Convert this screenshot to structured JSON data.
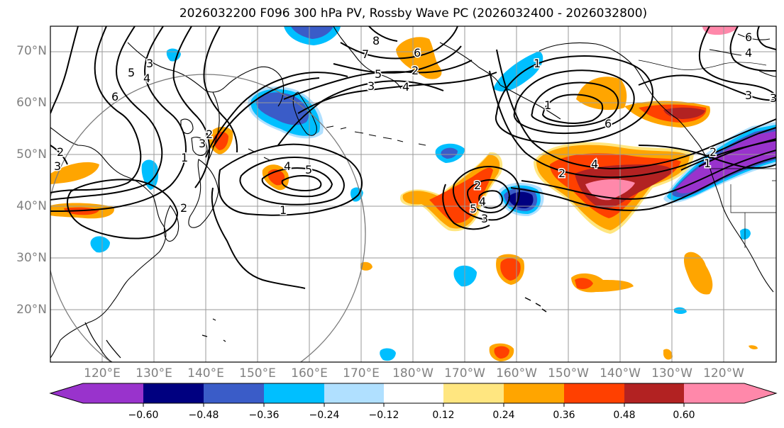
{
  "title": "2026032200 F096 300 hPa PV, Rossby Wave PC (2026032400 - 2026032800)",
  "latitude_labels": [
    "70°N",
    "60°N",
    "50°N",
    "40°N",
    "30°N",
    "20°N"
  ],
  "longitude_labels": [
    "120°E",
    "130°E",
    "140°E",
    "150°E",
    "160°E",
    "170°E",
    "180°W",
    "170°W",
    "160°W",
    "150°W",
    "140°W",
    "130°W",
    "120°W"
  ],
  "colorbar": {
    "ticks": [
      "−0.60",
      "−0.48",
      "−0.36",
      "−0.24",
      "−0.12",
      "0.12",
      "0.24",
      "0.36",
      "0.48",
      "0.60"
    ],
    "colors": [
      "#9933cc",
      "#000080",
      "#3a5cc8",
      "#00bfff",
      "#b0e0ff",
      "#ffffff",
      "#ffe680",
      "#ffa500",
      "#ff4000",
      "#b22222",
      "#ff88aa"
    ]
  },
  "contour_labels": [
    "8",
    "7",
    "6",
    "5",
    "4",
    "3",
    "2",
    "1",
    "1",
    "2",
    "3",
    "4",
    "5",
    "6",
    "5",
    "4",
    "3",
    "2",
    "1",
    "2",
    "3",
    "4",
    "5",
    "1",
    "2",
    "3",
    "4",
    "6",
    "6",
    "4",
    "3",
    "2",
    "1",
    "2",
    "3"
  ]
}
